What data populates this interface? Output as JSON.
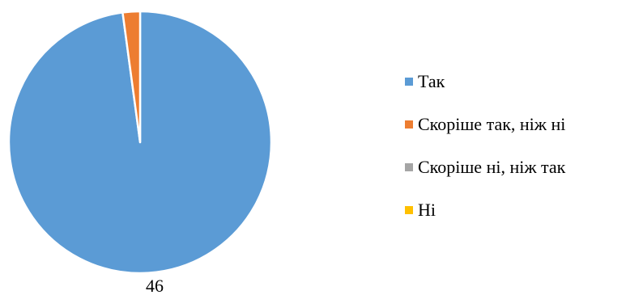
{
  "chart_data": {
    "type": "pie",
    "categories": [
      "Так",
      "Скоріше так, ніж ні",
      "Скоріше ні, ніж так",
      "Ні"
    ],
    "values": [
      46,
      1,
      0,
      0
    ],
    "colors": [
      "#5B9BD5",
      "#ED7D31",
      "#A5A5A5",
      "#FFC000"
    ],
    "data_labels": [
      "46",
      "",
      "",
      ""
    ],
    "legend_position": "right",
    "start_angle_deg": 0,
    "direction": "clockwise"
  }
}
